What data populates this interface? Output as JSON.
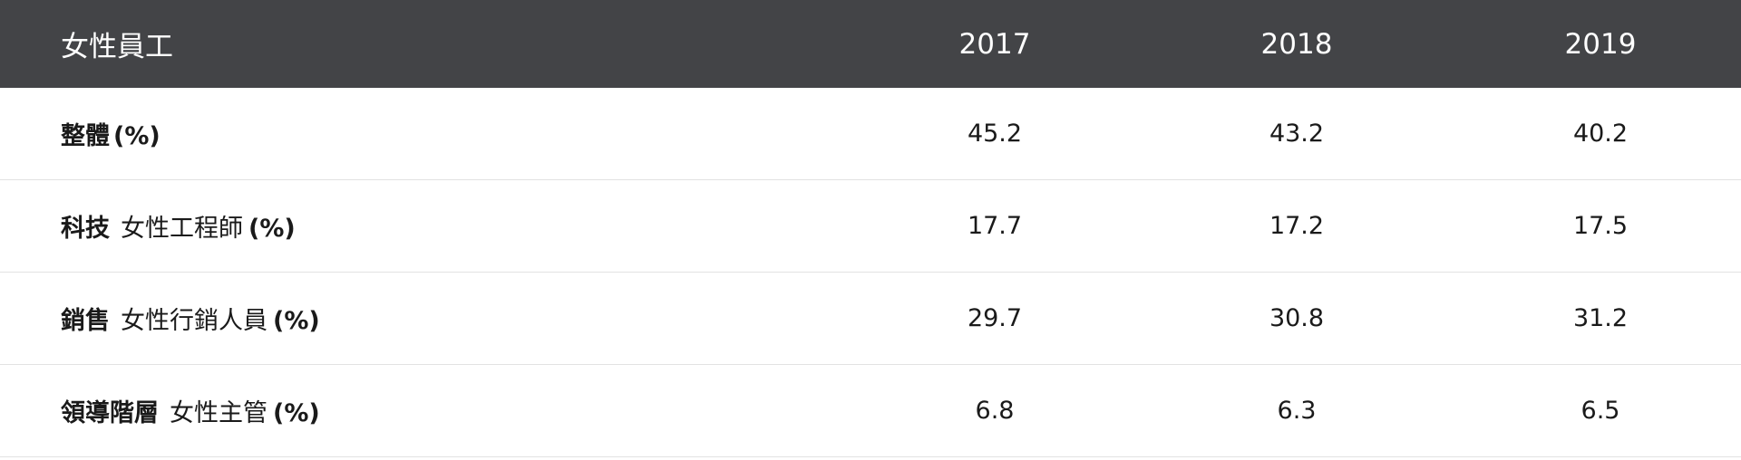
{
  "table": {
    "header": [
      "女性員工",
      "2017",
      "2018",
      "2019"
    ],
    "rows": [
      {
        "category": "整體",
        "unit": "(%)",
        "values": [
          45.2,
          43.2,
          40.2
        ]
      },
      {
        "category": "科技",
        "description": "女性工程師",
        "unit": "(%)",
        "values": [
          17.7,
          17.2,
          17.5
        ]
      },
      {
        "category": "銷售",
        "description": "女性行銷人員",
        "unit": "(%)",
        "values": [
          29.7,
          30.8,
          31.2
        ]
      },
      {
        "category": "領導階層",
        "description": "女性主管",
        "unit": "(%)",
        "values": [
          6.8,
          6.3,
          6.5
        ]
      }
    ]
  }
}
